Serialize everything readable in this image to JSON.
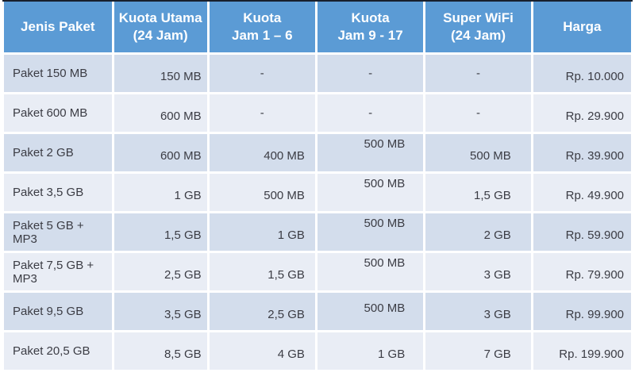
{
  "colors": {
    "header_bg": "#5b9bd5",
    "header_text": "#ffffff",
    "row_dark": "#d3ddec",
    "row_light": "#e9edf5",
    "text": "#3b3c44",
    "top_border": "#18202d",
    "page_bg": "#ffffff"
  },
  "chart_data": {
    "type": "table",
    "title": "",
    "columns": [
      {
        "id": "jenis-paket",
        "label": "Jenis Paket",
        "label_lines": [
          "Jenis Paket"
        ]
      },
      {
        "id": "kuota-utama-24-jam",
        "label": "Kuota Utama (24 Jam)",
        "label_lines": [
          "Kuota Utama",
          "(24 Jam)"
        ]
      },
      {
        "id": "kuota-jam-1-6",
        "label": "Kuota Jam 1 – 6",
        "label_lines": [
          "Kuota",
          "Jam 1 – 6"
        ]
      },
      {
        "id": "kuota-jam-9-17",
        "label": "Kuota Jam 9 - 17",
        "label_lines": [
          "Kuota",
          "Jam 9 - 17"
        ]
      },
      {
        "id": "super-wifi-24-jam",
        "label": "Super WiFi (24 Jam)",
        "label_lines": [
          "Super WiFi",
          "(24 Jam)"
        ]
      },
      {
        "id": "harga",
        "label": "Harga",
        "label_lines": [
          "Harga"
        ]
      }
    ],
    "rows": [
      {
        "cells": [
          "Paket 150 MB",
          "150 MB",
          "-",
          "-",
          "-",
          "Rp. 10.000"
        ],
        "col4_text_position": "normal"
      },
      {
        "cells": [
          "Paket 600 MB",
          "600 MB",
          "-",
          "-",
          "-",
          "Rp. 29.900"
        ],
        "col4_text_position": "normal"
      },
      {
        "cells": [
          "Paket 2 GB",
          "600 MB",
          "400 MB",
          "500 MB",
          "500 MB",
          "Rp. 39.900"
        ],
        "col4_text_position": "high"
      },
      {
        "cells": [
          "Paket 3,5 GB",
          "1 GB",
          "500 MB",
          "500 MB",
          "1,5 GB",
          "Rp. 49.900"
        ],
        "col4_text_position": "high"
      },
      {
        "cells": [
          "Paket 5 GB + MP3",
          "1,5 GB",
          "1 GB",
          "500 MB",
          "2 GB",
          "Rp. 59.900"
        ],
        "col4_text_position": "high"
      },
      {
        "cells": [
          "Paket 7,5 GB + MP3",
          "2,5 GB",
          "1,5 GB",
          "500 MB",
          "3 GB",
          "Rp. 79.900"
        ],
        "col4_text_position": "high"
      },
      {
        "cells": [
          "Paket 9,5 GB",
          "3,5 GB",
          "2,5 GB",
          "500 MB",
          "3 GB",
          "Rp. 99.900"
        ],
        "col4_text_position": "slight"
      },
      {
        "cells": [
          "Paket 20,5 GB",
          "8,5 GB",
          "4 GB",
          "1 GB",
          "7 GB",
          "Rp. 199.900"
        ],
        "col4_text_position": "normal"
      }
    ]
  }
}
